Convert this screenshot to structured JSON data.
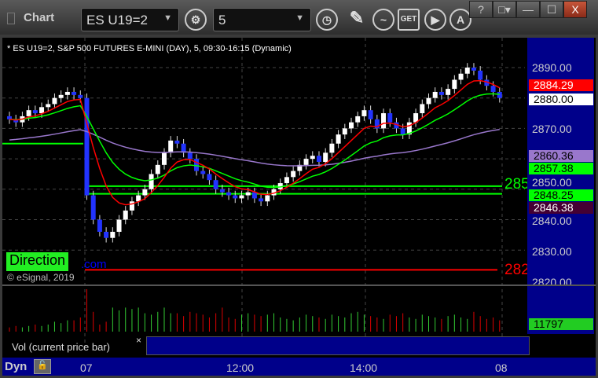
{
  "window": {
    "title": "Chart",
    "symbol": "ES U19=2",
    "interval": "5",
    "buttons": [
      "?",
      "□▾",
      "—",
      "☐",
      "X"
    ]
  },
  "chart": {
    "header": "* ES U19=2, S&P 500 FUTURES E-MINI (DAY), 5, 09:30-16:15 (Dynamic)",
    "price_labels": [
      "2890.00",
      "2870.00",
      "2850.00",
      "2840.00",
      "2830.00",
      "2820.00"
    ],
    "tags": [
      {
        "text": "2884.29",
        "bg": "#ff0000",
        "fg": "#ffffff"
      },
      {
        "text": "2880.00",
        "bg": "#ffffff",
        "fg": "#000000"
      },
      {
        "text": "2860.36",
        "bg": "#9977cc",
        "fg": "#000000"
      },
      {
        "text": "2857.38",
        "bg": "#00ff00",
        "fg": "#000000"
      },
      {
        "text": "2848.25",
        "bg": "#00ff00",
        "fg": "#000000"
      },
      {
        "text": "2846.38",
        "bg": "#440033",
        "fg": "#ffffff"
      }
    ],
    "level_labels": [
      {
        "text": "285",
        "color": "#00ff00"
      },
      {
        "text": "282",
        "color": "#ff0000"
      }
    ],
    "direction": "Direction",
    "watermark": ".com",
    "copyright": "© eSignal, 2019",
    "volume_tag": "11797",
    "volume_label": "Vol (current price bar)",
    "volume_close": "×",
    "x_labels": [
      "07",
      "12:00",
      "14:00",
      "08"
    ],
    "dyn": "Dyn"
  },
  "chart_data": {
    "type": "candlestick",
    "yrange": [
      2820,
      2892
    ],
    "closes": [
      2873,
      2872,
      2874,
      2876,
      2875,
      2877,
      2878,
      2880,
      2881,
      2882,
      2881,
      2880,
      2848,
      2840,
      2836,
      2834,
      2836,
      2840,
      2843,
      2846,
      2848,
      2850,
      2855,
      2858,
      2862,
      2866,
      2865,
      2862,
      2860,
      2856,
      2855,
      2853,
      2850,
      2849,
      2848,
      2847,
      2848,
      2849,
      2847,
      2846,
      2848,
      2850,
      2852,
      2854,
      2856,
      2858,
      2860,
      2861,
      2859,
      2862,
      2865,
      2868,
      2870,
      2872,
      2874,
      2876,
      2873,
      2870,
      2875,
      2872,
      2870,
      2868,
      2872,
      2875,
      2878,
      2880,
      2882,
      2881,
      2883,
      2886,
      2888,
      2890,
      2889,
      2886,
      2884,
      2882,
      2880
    ],
    "levels": [
      {
        "value": 2823.5,
        "color": "#ff0000"
      },
      {
        "value": 2851,
        "color": "#00ff00"
      },
      {
        "value": 2848.5,
        "color": "#00ff00"
      },
      {
        "value": 2865,
        "color": "#00ff00"
      }
    ],
    "volumes": [
      3,
      4,
      3,
      4,
      5,
      4,
      5,
      7,
      6,
      8,
      8,
      10,
      30,
      14,
      5,
      7,
      17,
      15,
      17,
      16,
      17,
      13,
      12,
      14,
      17,
      13,
      13,
      11,
      14,
      13,
      12,
      10,
      13,
      17,
      10,
      9,
      12,
      13,
      12,
      11,
      12,
      13,
      10,
      9,
      8,
      10,
      12,
      11,
      10,
      9,
      12,
      11,
      10,
      13,
      14,
      12,
      11,
      10,
      9,
      12,
      11,
      13,
      10,
      9,
      12,
      11,
      10,
      9,
      11,
      12,
      10,
      9,
      14,
      11,
      9,
      10,
      8
    ]
  }
}
